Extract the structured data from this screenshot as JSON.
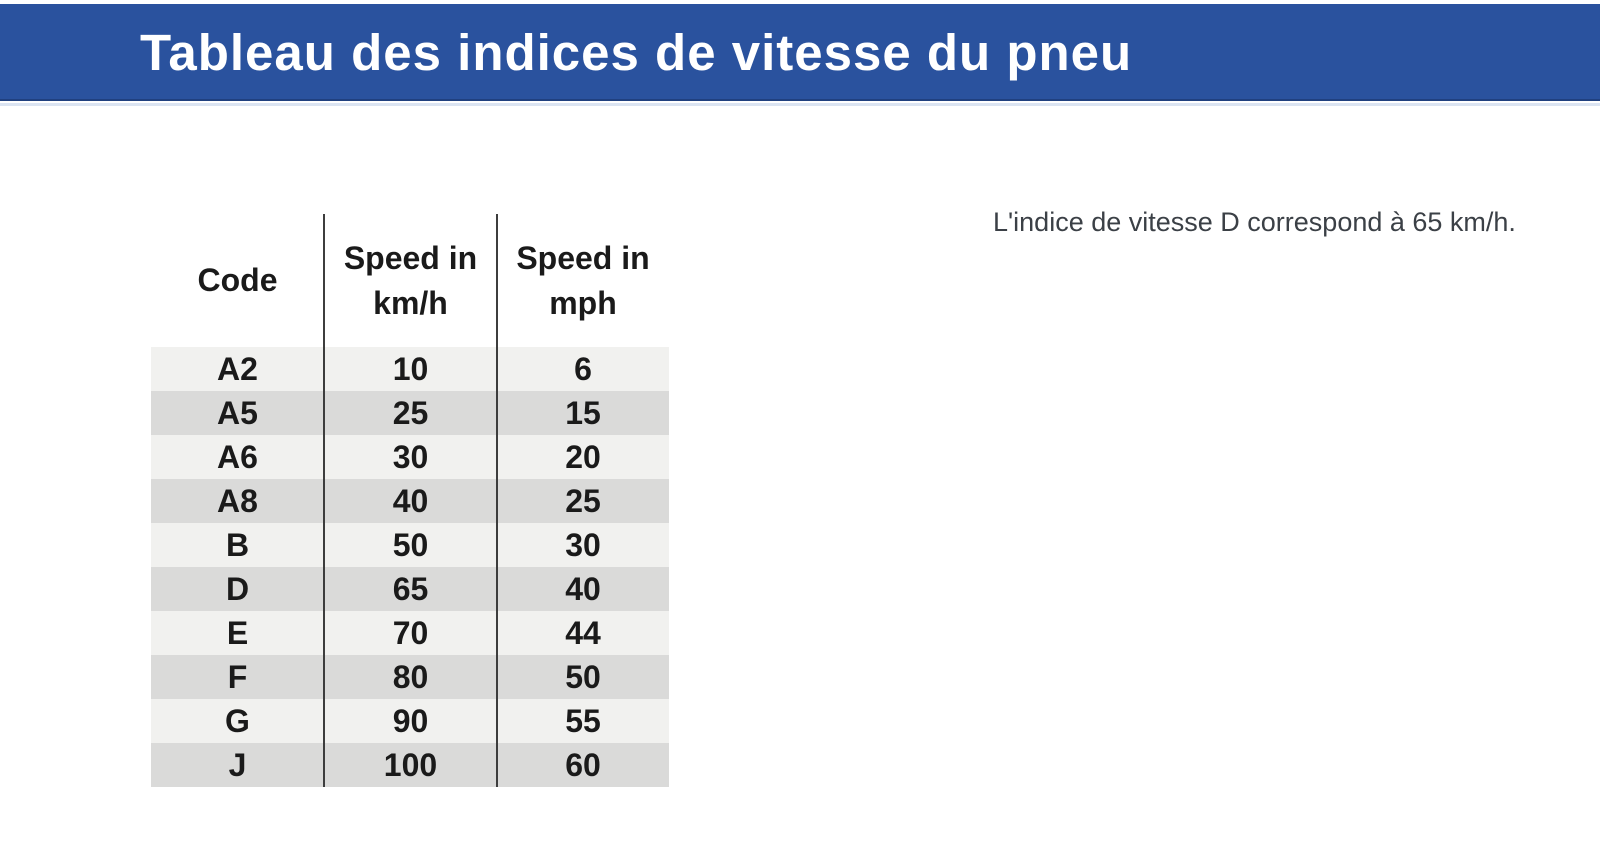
{
  "banner": {
    "title": "Tableau des indices de vitesse du pneu",
    "background_color": "#2a529e",
    "title_color": "#ffffff"
  },
  "table": {
    "headers": [
      {
        "label": "Code"
      },
      {
        "label": "Speed in km/h"
      },
      {
        "label": "Speed in mph"
      }
    ],
    "rows": [
      {
        "code": "A2",
        "kmh": "10",
        "mph": "6"
      },
      {
        "code": "A5",
        "kmh": "25",
        "mph": "15"
      },
      {
        "code": "A6",
        "kmh": "30",
        "mph": "20"
      },
      {
        "code": "A8",
        "kmh": "40",
        "mph": "25"
      },
      {
        "code": "B",
        "kmh": "50",
        "mph": "30"
      },
      {
        "code": "D",
        "kmh": "65",
        "mph": "40"
      },
      {
        "code": "E",
        "kmh": "70",
        "mph": "44"
      },
      {
        "code": "F",
        "kmh": "80",
        "mph": "50"
      },
      {
        "code": "G",
        "kmh": "90",
        "mph": "55"
      },
      {
        "code": "J",
        "kmh": "100",
        "mph": "60"
      }
    ],
    "row_stripe_light": "#f1f1ef",
    "row_stripe_dark": "#dadad9",
    "divider_color": "#3d3d3d",
    "text_color": "#1a1a1a"
  },
  "note": {
    "text": "L'indice de vitesse D correspond à 65 km/h.",
    "text_color": "#3b4046"
  }
}
